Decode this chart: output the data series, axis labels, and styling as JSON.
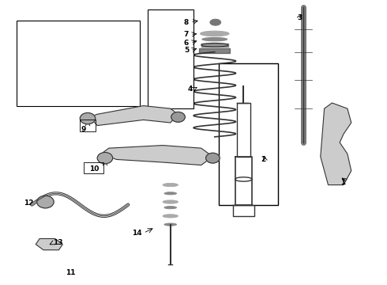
{
  "background_color": "#ffffff",
  "border_color": "#000000",
  "line_color": "#333333",
  "part_color": "#555555",
  "label_color": "#000000",
  "fig_width": 4.9,
  "fig_height": 3.6,
  "dpi": 100
}
